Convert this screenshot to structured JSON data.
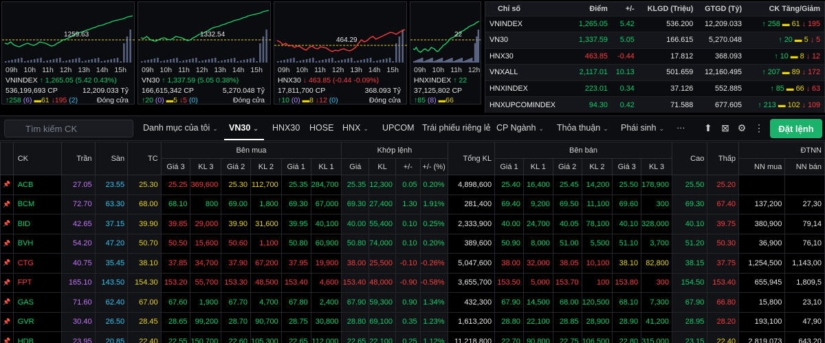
{
  "mini_charts": [
    {
      "name": "VNINDEX",
      "change": "1,265.05 (5.42 0.43%)",
      "dir": "up",
      "ref": "1259.63",
      "volume": "536,199,693 CP",
      "value": "12,209.033 Tỷ",
      "adv": "258",
      "adv_c": "6",
      "unch": "61",
      "dec": "195",
      "dec_f": "2",
      "status": "Đóng cửa"
    },
    {
      "name": "VN30",
      "change": "1,337.59 (5.05 0.38%)",
      "dir": "up",
      "ref": "1332.54",
      "volume": "166,615,342 CP",
      "value": "5,270.048 Tỷ",
      "adv": "20",
      "adv_c": "0",
      "unch": "5",
      "dec": "5",
      "dec_f": "0",
      "status": "Đóng cửa"
    },
    {
      "name": "HNX30",
      "change": "463.85 (-0.44 -0.09%)",
      "dir": "down",
      "ref": "464.29",
      "volume": "17,811,700 CP",
      "value": "368.093 Tỷ",
      "adv": "10",
      "adv_c": "0",
      "unch": "8",
      "dec": "12",
      "dec_f": "0",
      "status": "Đóng cửa"
    },
    {
      "name": "HNXINDEX",
      "change": "22",
      "dir": "up",
      "ref": "22",
      "volume": "37,125,802 CP",
      "value": "",
      "adv": "85",
      "adv_c": "8",
      "unch": "66",
      "dec": "",
      "dec_f": "",
      "status": ""
    }
  ],
  "hours": [
    "09h",
    "10h",
    "11h",
    "12h",
    "13h",
    "14h",
    "15h"
  ],
  "index_table": {
    "headers": [
      "Chỉ số",
      "Điểm",
      "+/-",
      "KLGD (Triệu)",
      "GTGD (Tỷ)",
      "CK Tăng/Giảm"
    ],
    "rows": [
      {
        "name": "VNINDEX",
        "point": "1,265.05",
        "change": "5.42",
        "vol": "536.200",
        "val": "12,209.033",
        "up": "258",
        "flat": "61",
        "down": "195",
        "dir": "up"
      },
      {
        "name": "VN30",
        "point": "1,337.59",
        "change": "5.05",
        "vol": "166.615",
        "val": "5,270.048",
        "up": "20",
        "flat": "5",
        "down": "5",
        "dir": "up"
      },
      {
        "name": "HNX30",
        "point": "463.85",
        "change": "-0.44",
        "vol": "17.812",
        "val": "368.093",
        "up": "10",
        "flat": "8",
        "down": "12",
        "dir": "down"
      },
      {
        "name": "VNXALL",
        "point": "2,117.01",
        "change": "10.13",
        "vol": "501.659",
        "val": "12,160.495",
        "up": "207",
        "flat": "89",
        "down": "172",
        "dir": "up"
      },
      {
        "name": "HNXINDEX",
        "point": "223.01",
        "change": "0.34",
        "vol": "37.126",
        "val": "552.885",
        "up": "85",
        "flat": "66",
        "down": "63",
        "dir": "up"
      },
      {
        "name": "HNXUPCOMINDEX",
        "point": "94.30",
        "change": "0.42",
        "vol": "71.588",
        "val": "677.605",
        "up": "213",
        "flat": "102",
        "down": "109",
        "dir": "up"
      }
    ]
  },
  "toolbar": {
    "search_placeholder": "Tìm kiếm CK",
    "tabs": [
      "Danh mục của tôi",
      "VN30",
      "HNX30",
      "HOSE",
      "HNX",
      "UPCOM",
      "Trái phiếu riêng lẻ",
      "CP Ngành",
      "Thỏa thuận",
      "Phái sinh",
      "···"
    ],
    "order_button": "Đặt lệnh"
  },
  "board": {
    "group_headers": {
      "buy": "Bên mua",
      "match": "Khớp lệnh",
      "sell": "Bên bán",
      "foreign": "ĐTNN"
    },
    "col_headers": {
      "ck": "CK",
      "tran": "Trần",
      "san": "Sàn",
      "tc": "TC",
      "g3": "Giá 3",
      "kl3": "KL 3",
      "g2": "Giá 2",
      "kl2": "KL 2",
      "g1": "Giá 1",
      "kl1": "KL 1",
      "mg": "Giá",
      "mkl": "KL",
      "mc": "+/-",
      "mp": "+/- (%)",
      "tkl": "Tổng KL",
      "sg1": "Giá 1",
      "skl1": "KL 1",
      "sg2": "Giá 2",
      "skl2": "KL 2",
      "sg3": "Giá 3",
      "skl3": "KL 3",
      "cao": "Cao",
      "thap": "Thấp",
      "nnm": "NN mua",
      "nnb": "NN bán"
    },
    "rows": [
      {
        "sym": "ACB",
        "c": "up",
        "tran": "27.05",
        "san": "23.55",
        "tc": "25.30",
        "b3": "25.25",
        "b3c": "down",
        "bk3": "369,600",
        "b2": "25.30",
        "b2c": "ref",
        "bk2": "112,700",
        "b1": "25.35",
        "b1c": "up",
        "bk1": "284,700",
        "mg": "25.35",
        "mk": "12,300",
        "mch": "0.05",
        "mp": "0.20%",
        "tkl": "4,898,600",
        "s1": "25.40",
        "s1c": "up",
        "sk1": "16,400",
        "s2": "25.45",
        "s2c": "up",
        "sk2": "14,200",
        "s3": "25.50",
        "s3c": "up",
        "sk3": "178,900",
        "cao": "25.50",
        "caoc": "up",
        "thap": "25.20",
        "thapc": "down",
        "nnm": "",
        "nnb": ""
      },
      {
        "sym": "BCM",
        "c": "up",
        "tran": "72.70",
        "san": "63.30",
        "tc": "68.00",
        "b3": "68.10",
        "b3c": "up",
        "bk3": "800",
        "b2": "69.00",
        "b2c": "up",
        "bk2": "1,800",
        "b1": "69.30",
        "b1c": "up",
        "bk1": "67,000",
        "mg": "69.30",
        "mk": "27,400",
        "mch": "1.30",
        "mp": "1.91%",
        "tkl": "281,400",
        "s1": "69.40",
        "s1c": "up",
        "sk1": "9,200",
        "s2": "69.50",
        "s2c": "up",
        "sk2": "11,100",
        "s3": "69.60",
        "s3c": "up",
        "sk3": "300",
        "cao": "69.30",
        "caoc": "up",
        "thap": "67.40",
        "thapc": "down",
        "nnm": "137,200",
        "nnb": "27,30"
      },
      {
        "sym": "BID",
        "c": "up",
        "tran": "42.65",
        "san": "37.15",
        "tc": "39.90",
        "b3": "39.85",
        "b3c": "down",
        "bk3": "29,000",
        "b2": "39.90",
        "b2c": "ref",
        "bk2": "31,600",
        "b1": "39.95",
        "b1c": "up",
        "bk1": "40,100",
        "mg": "40.00",
        "mk": "55,400",
        "mch": "0.10",
        "mp": "0.25%",
        "tkl": "2,333,900",
        "s1": "40.00",
        "s1c": "up",
        "sk1": "24,700",
        "s2": "40.05",
        "s2c": "up",
        "sk2": "78,100",
        "s3": "40.10",
        "s3c": "up",
        "sk3": "328,000",
        "cao": "40.10",
        "caoc": "up",
        "thap": "39.75",
        "thapc": "down",
        "nnm": "380,900",
        "nnb": "79,14"
      },
      {
        "sym": "BVH",
        "c": "up",
        "tran": "54.20",
        "san": "47.20",
        "tc": "50.70",
        "b3": "50.50",
        "b3c": "down",
        "bk3": "15,600",
        "b2": "50.60",
        "b2c": "down",
        "bk2": "1,100",
        "b1": "50.80",
        "b1c": "up",
        "bk1": "60,900",
        "mg": "50.80",
        "mk": "74,000",
        "mch": "0.10",
        "mp": "0.20%",
        "tkl": "389,600",
        "s1": "50.90",
        "s1c": "up",
        "sk1": "8,000",
        "s2": "51.00",
        "s2c": "up",
        "sk2": "5,500",
        "s3": "51.10",
        "s3c": "up",
        "sk3": "3,700",
        "cao": "51.20",
        "caoc": "up",
        "thap": "50.30",
        "thapc": "down",
        "nnm": "36,900",
        "nnb": "76,10"
      },
      {
        "sym": "CTG",
        "c": "down",
        "tran": "40.75",
        "san": "35.45",
        "tc": "38.10",
        "b3": "37.85",
        "b3c": "down",
        "bk3": "34,700",
        "b2": "37.90",
        "b2c": "down",
        "bk2": "67,200",
        "b1": "37.95",
        "b1c": "down",
        "bk1": "19,900",
        "mg": "38.00",
        "mk": "25,500",
        "mch": "-0.10",
        "mp": "-0.26%",
        "tkl": "5,047,600",
        "s1": "38.00",
        "s1c": "down",
        "sk1": "32,000",
        "s2": "38.05",
        "s2c": "down",
        "sk2": "10,100",
        "s3": "38.10",
        "s3c": "ref",
        "sk3": "82,800",
        "cao": "38.15",
        "caoc": "up",
        "thap": "37.75",
        "thapc": "down",
        "nnm": "1,254,500",
        "nnb": "1,143,00"
      },
      {
        "sym": "FPT",
        "c": "down",
        "tran": "165.10",
        "san": "143.50",
        "tc": "154.30",
        "b3": "153.20",
        "b3c": "down",
        "bk3": "55,700",
        "b2": "153.30",
        "b2c": "down",
        "bk2": "48,500",
        "b1": "153.40",
        "b1c": "down",
        "bk1": "4,600",
        "mg": "153.40",
        "mk": "48,000",
        "mch": "-0.90",
        "mp": "-0.58%",
        "tkl": "3,655,700",
        "s1": "153.50",
        "s1c": "down",
        "sk1": "5,000",
        "s2": "153.70",
        "s2c": "down",
        "sk2": "100",
        "s3": "153.80",
        "s3c": "down",
        "sk3": "300",
        "cao": "154.50",
        "caoc": "up",
        "thap": "153.40",
        "thapc": "down",
        "nnm": "655,945",
        "nnb": "1,809,5"
      },
      {
        "sym": "GAS",
        "c": "up",
        "tran": "71.60",
        "san": "62.40",
        "tc": "67.00",
        "b3": "67.60",
        "b3c": "up",
        "bk3": "1,900",
        "b2": "67.70",
        "b2c": "up",
        "bk2": "4,700",
        "b1": "67.80",
        "b1c": "up",
        "bk1": "2,400",
        "mg": "67.90",
        "mk": "59,300",
        "mch": "0.90",
        "mp": "1.34%",
        "tkl": "432,300",
        "s1": "67.90",
        "s1c": "up",
        "sk1": "14,500",
        "s2": "68.00",
        "s2c": "up",
        "sk2": "120,500",
        "s3": "68.10",
        "s3c": "up",
        "sk3": "7,300",
        "cao": "67.90",
        "caoc": "up",
        "thap": "66.80",
        "thapc": "down",
        "nnm": "15,800",
        "nnb": "23,10"
      },
      {
        "sym": "GVR",
        "c": "up",
        "tran": "30.40",
        "san": "26.50",
        "tc": "28.45",
        "b3": "28.65",
        "b3c": "up",
        "bk3": "99,200",
        "b2": "28.70",
        "b2c": "up",
        "bk2": "90,700",
        "b1": "28.75",
        "b1c": "up",
        "bk1": "30,800",
        "mg": "28.80",
        "mk": "69,100",
        "mch": "0.35",
        "mp": "1.23%",
        "tkl": "1,613,200",
        "s1": "28.80",
        "s1c": "up",
        "sk1": "22,100",
        "s2": "28.85",
        "s2c": "up",
        "sk2": "28,900",
        "s3": "28.90",
        "s3c": "up",
        "sk3": "41,200",
        "cao": "28.95",
        "caoc": "up",
        "thap": "28.20",
        "thapc": "down",
        "nnm": "193,100",
        "nnb": "47,90"
      },
      {
        "sym": "HDB",
        "c": "up",
        "tran": "23.95",
        "san": "20.85",
        "tc": "22.40",
        "b3": "22.55",
        "b3c": "up",
        "bk3": "150,700",
        "b2": "22.60",
        "b2c": "up",
        "bk2": "105,300",
        "b1": "22.65",
        "b1c": "up",
        "bk1": "112,000",
        "mg": "22.65",
        "mk": "22,100",
        "mch": "0.25",
        "mp": "1.12%",
        "tkl": "11,218,800",
        "s1": "22.70",
        "s1c": "up",
        "sk1": "90,800",
        "s2": "22.75",
        "s2c": "up",
        "sk2": "106,500",
        "s3": "22.80",
        "s3c": "up",
        "sk3": "315,000",
        "cao": "23.15",
        "caoc": "up",
        "thap": "22.40",
        "thapc": "ref",
        "nnm": "2,819,073",
        "nnb": "643,20"
      }
    ]
  }
}
